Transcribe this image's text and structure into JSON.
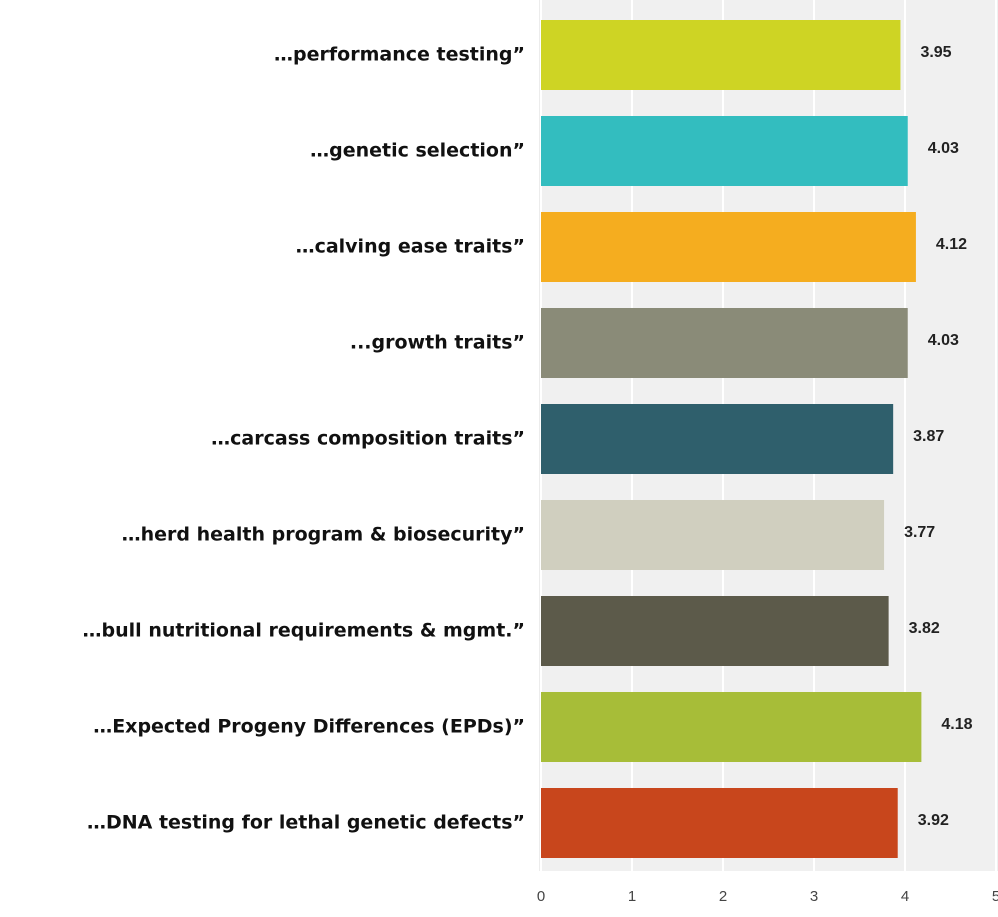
{
  "chart_data": {
    "type": "bar",
    "orientation": "horizontal",
    "categories": [
      "…performance testing”",
      "…genetic selection”",
      "…calving ease traits”",
      "...growth traits”",
      "…carcass composition traits”",
      "…herd health program & biosecurity”",
      "…bull nutritional requirements & mgmt.”",
      "…Expected Progeny Differences (EPDs)”",
      "…DNA testing for lethal genetic defects”"
    ],
    "values": [
      3.95,
      4.03,
      4.12,
      4.03,
      3.87,
      3.77,
      3.82,
      4.18,
      3.92
    ],
    "colors": [
      "#ced424",
      "#33bdbf",
      "#f5ad1f",
      "#8a8b78",
      "#2f5f6c",
      "#d0cfbf",
      "#5c5a4a",
      "#a7bd38",
      "#c8461c"
    ],
    "xlim": [
      0,
      5
    ],
    "xticks": [
      0,
      1,
      2,
      3,
      4,
      5
    ],
    "grid": true
  }
}
